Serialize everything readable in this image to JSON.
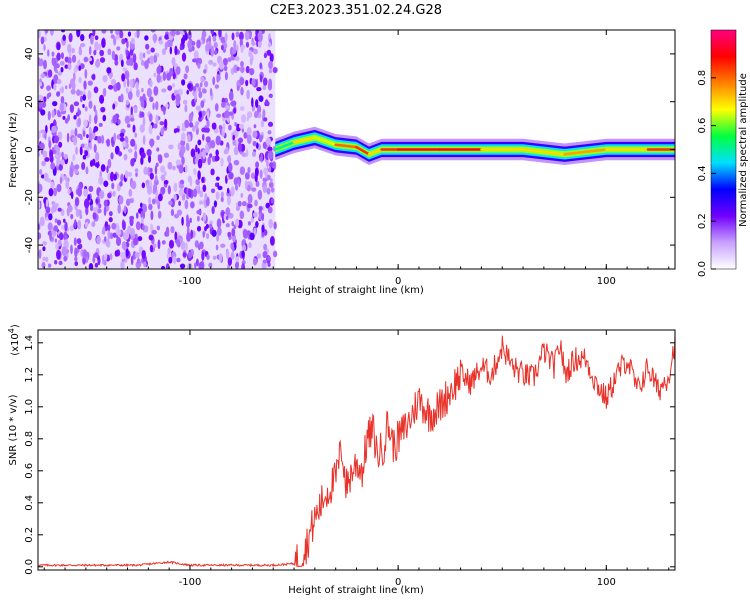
{
  "figure_title": "C2E3.2023.351.02.24.G28",
  "colors": {
    "signal": "#e8322a",
    "axis": "#000000",
    "background": "#ffffff"
  },
  "chart_data": [
    {
      "type": "heatmap",
      "xlabel": "Height of straight line (km)",
      "ylabel": "Frequency (Hz)",
      "xlim": [
        -173,
        133
      ],
      "ylim": [
        -50,
        50
      ],
      "x_ticks": [
        -100,
        0,
        100
      ],
      "y_ticks": [
        -40,
        -20,
        0,
        20,
        40
      ],
      "x_tick_labels": [
        "-100",
        "0",
        "100"
      ],
      "y_tick_labels": [
        "-40",
        "-20",
        "0",
        "20",
        "40"
      ],
      "grid": false,
      "noise_region_x": [
        -173,
        -59
      ],
      "signal_trace": {
        "x": [
          -59,
          -50,
          -40,
          -30,
          -20,
          -14,
          -8,
          0,
          20,
          40,
          60,
          80,
          100,
          120,
          133
        ],
        "freq": [
          0,
          3,
          5,
          2,
          1,
          -2,
          0,
          0,
          0,
          0,
          0,
          -2,
          0,
          0,
          0
        ],
        "amplitude": [
          0.5,
          0.7,
          0.65,
          0.8,
          0.85,
          0.7,
          0.85,
          0.9,
          0.9,
          0.7,
          0.7,
          0.75,
          0.7,
          0.85,
          0.8
        ]
      },
      "colorbar": {
        "label": "Normalized spectral amplitude",
        "range": [
          0,
          1
        ],
        "ticks": [
          0.0,
          0.2,
          0.4,
          0.6,
          0.8
        ],
        "tick_labels": [
          "0.0",
          "0.2",
          "0.4",
          "0.6",
          "0.8"
        ],
        "colors": [
          "#ffffff",
          "#c8a0ff",
          "#7000ff",
          "#0000ff",
          "#00e0ff",
          "#00ff40",
          "#ffff00",
          "#ff8000",
          "#ff0000",
          "#ff0080"
        ]
      }
    },
    {
      "type": "line",
      "xlabel": "Height of straight line (km)",
      "ylabel": "SNR (10 * v/v)",
      "scale_label": "(x10",
      "scale_exponent": "4",
      "scale_close": ")",
      "xlim": [
        -173,
        133
      ],
      "ylim": [
        -0.02,
        1.48
      ],
      "x_ticks": [
        -100,
        0,
        100
      ],
      "y_ticks": [
        0.0,
        0.2,
        0.4,
        0.6,
        0.8,
        1.0,
        1.2,
        1.4
      ],
      "x_tick_labels": [
        "-100",
        "0",
        "100"
      ],
      "y_tick_labels": [
        "0.0",
        "0.2",
        "0.4",
        "0.6",
        "0.8",
        "1.0",
        "1.2",
        "1.4"
      ],
      "grid": false,
      "series": [
        {
          "color": "#e8322a",
          "x": [
            -173,
            -150,
            -125,
            -110,
            -100,
            -80,
            -60,
            -50,
            -45,
            -40,
            -35,
            -30,
            -27,
            -25,
            -22,
            -20,
            -17,
            -15,
            -12,
            -10,
            -7,
            -5,
            -2,
            0,
            5,
            10,
            15,
            20,
            25,
            30,
            35,
            40,
            45,
            50,
            55,
            60,
            65,
            70,
            75,
            78,
            80,
            85,
            90,
            95,
            100,
            105,
            110,
            115,
            120,
            125,
            130,
            133
          ],
          "y": [
            0.01,
            0.01,
            0.01,
            0.03,
            0.01,
            0.01,
            0.01,
            0.02,
            0.1,
            0.3,
            0.45,
            0.55,
            0.75,
            0.5,
            0.6,
            0.65,
            0.6,
            0.8,
            0.85,
            0.7,
            0.75,
            0.9,
            0.75,
            0.8,
            0.9,
            1.05,
            0.95,
            1.0,
            1.1,
            1.2,
            1.15,
            1.25,
            1.2,
            1.38,
            1.25,
            1.2,
            1.18,
            1.35,
            1.25,
            1.4,
            1.2,
            1.3,
            1.3,
            1.15,
            1.05,
            1.2,
            1.3,
            1.1,
            1.25,
            1.1,
            1.2,
            1.4
          ]
        }
      ]
    }
  ]
}
